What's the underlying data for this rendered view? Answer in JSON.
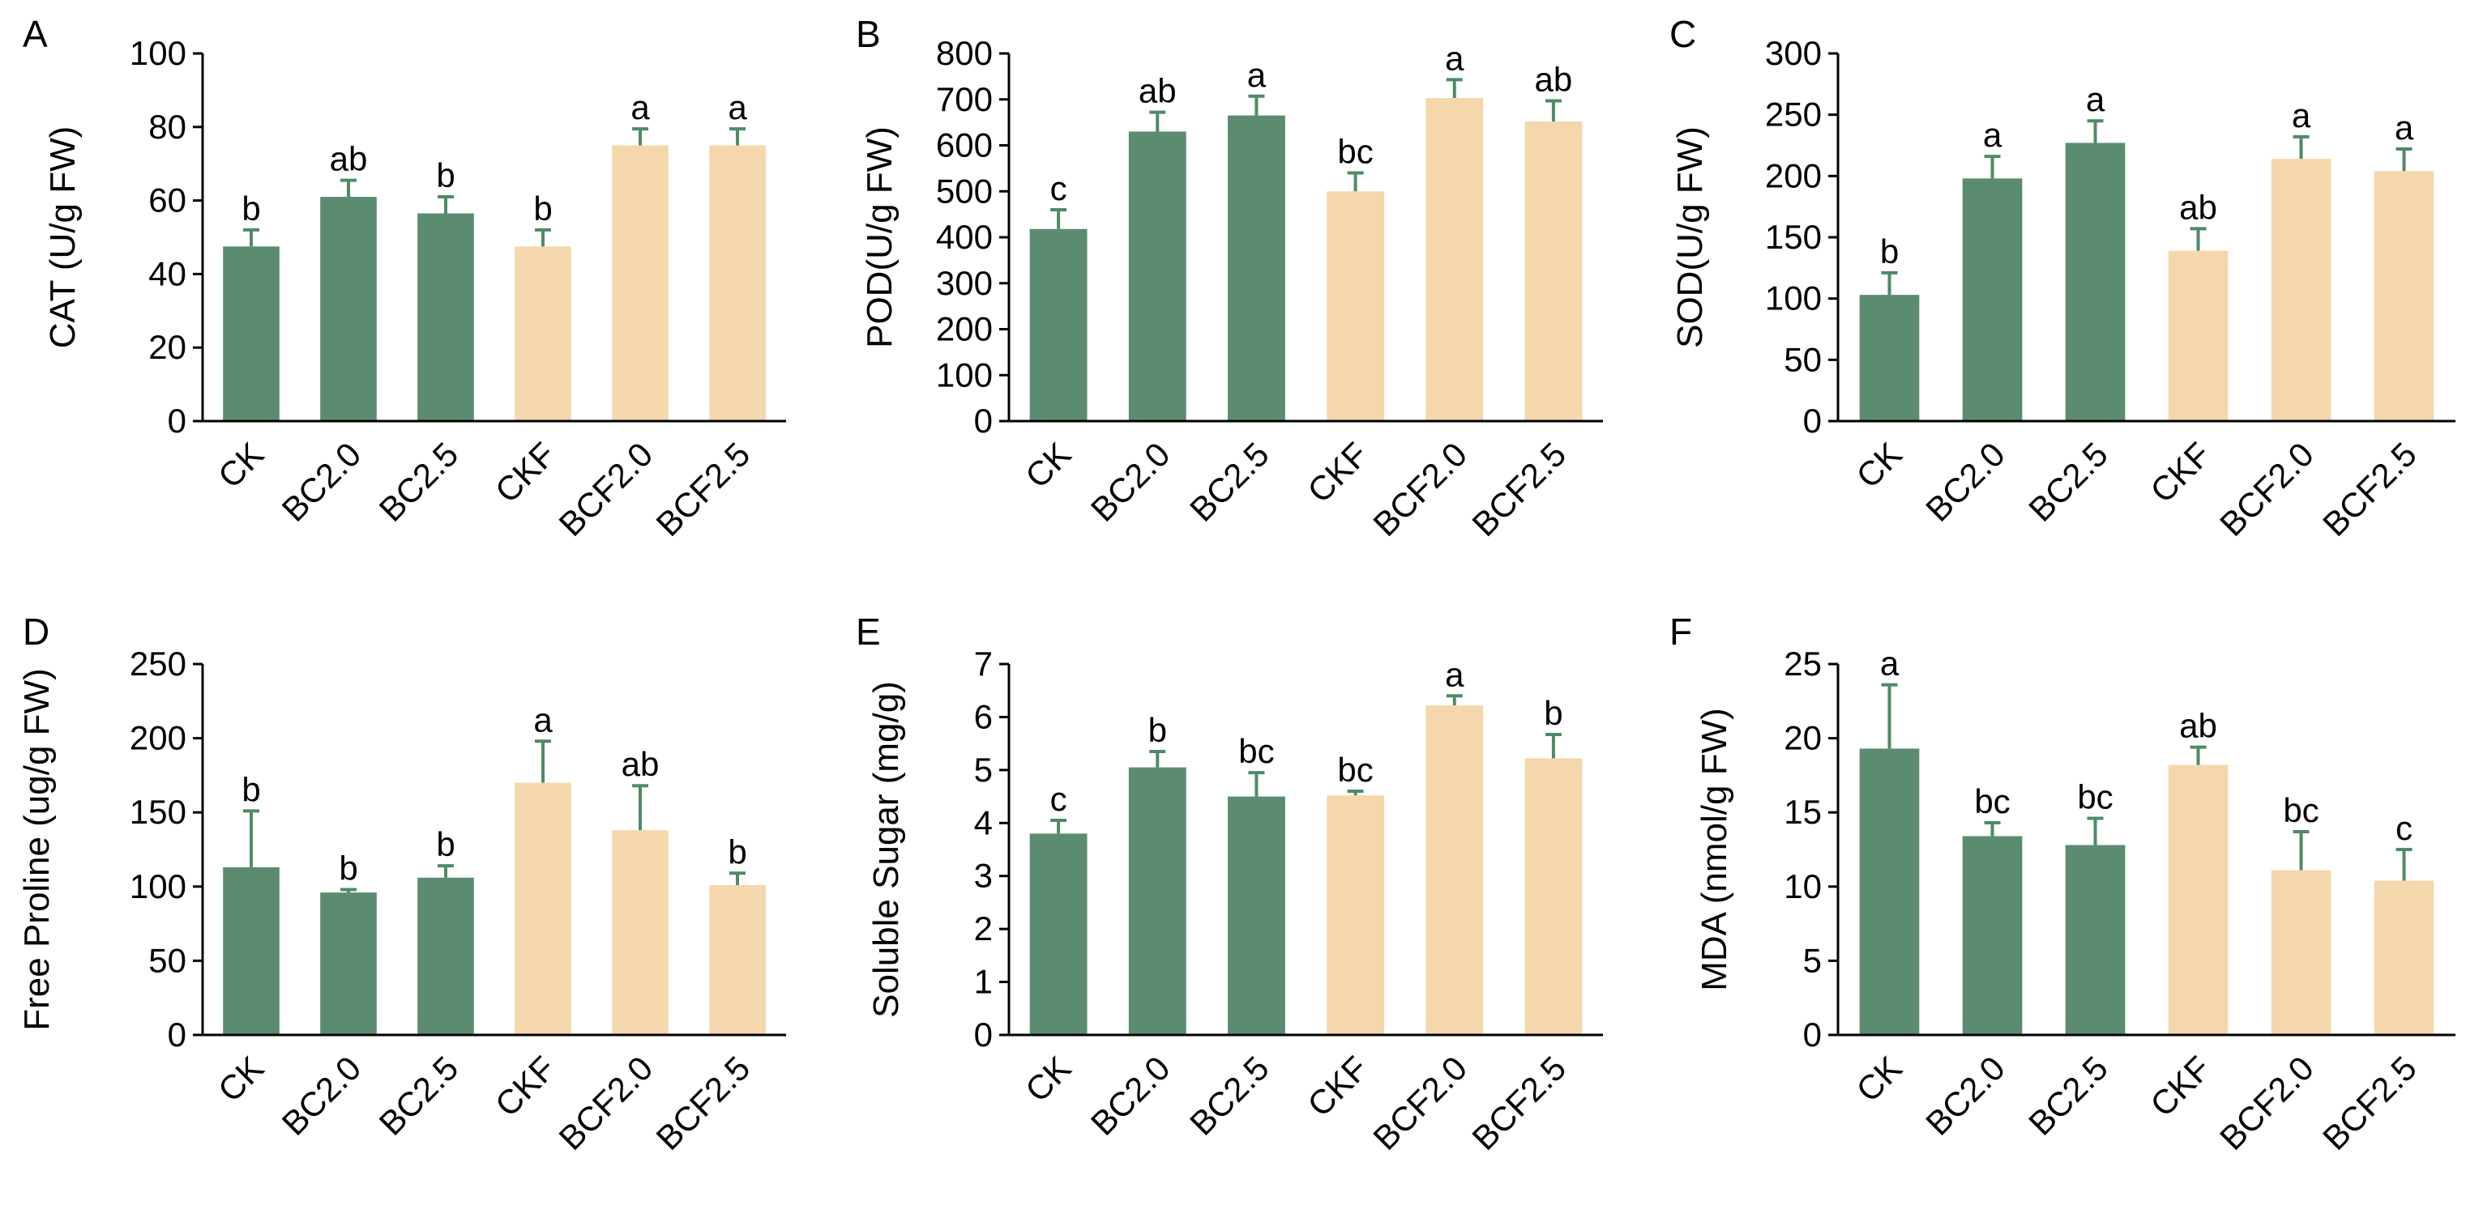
{
  "colors": {
    "group1": "#5b8c71",
    "group2": "#f5d7ad",
    "error_bar": "#4f8a67"
  },
  "chart_data": [
    {
      "panel": "A",
      "type": "bar",
      "ylabel": "CAT (U/g FW)",
      "ylim": [
        0,
        100
      ],
      "ticks": [
        0,
        20,
        40,
        60,
        80,
        100
      ],
      "categories": [
        "CK",
        "BC2.0",
        "BC2.5",
        "CKF",
        "BCF2.0",
        "BCF2.5"
      ],
      "values": [
        47.5,
        61,
        56.5,
        47.5,
        75,
        75
      ],
      "errors": [
        4.5,
        4.5,
        4.5,
        4.5,
        4.5,
        4.5
      ],
      "letters": [
        "b",
        "ab",
        "b",
        "b",
        "a",
        "a"
      ]
    },
    {
      "panel": "B",
      "type": "bar",
      "ylabel": "POD(U/g FW)",
      "ylim": [
        0,
        800
      ],
      "ticks": [
        0,
        100,
        200,
        300,
        400,
        500,
        600,
        700,
        800
      ],
      "categories": [
        "CK",
        "BC2.0",
        "BC2.5",
        "CKF",
        "BCF2.0",
        "BCF2.5"
      ],
      "values": [
        418,
        630,
        665,
        500,
        703,
        652
      ],
      "errors": [
        42,
        42,
        42,
        40,
        40,
        45
      ],
      "letters": [
        "c",
        "ab",
        "a",
        "bc",
        "a",
        "ab"
      ]
    },
    {
      "panel": "C",
      "type": "bar",
      "ylabel": "SOD(U/g FW)",
      "ylim": [
        0,
        300
      ],
      "ticks": [
        0,
        50,
        100,
        150,
        200,
        250,
        300
      ],
      "categories": [
        "CK",
        "BC2.0",
        "BC2.5",
        "CKF",
        "BCF2.0",
        "BCF2.5"
      ],
      "values": [
        103,
        198,
        227,
        139,
        214,
        204
      ],
      "errors": [
        18,
        18,
        18,
        18,
        18,
        18
      ],
      "letters": [
        "b",
        "a",
        "a",
        "ab",
        "a",
        "a"
      ]
    },
    {
      "panel": "D",
      "type": "bar",
      "ylabel": "Free Proline (ug/g FW)",
      "ylim": [
        0,
        250
      ],
      "ticks": [
        0,
        50,
        100,
        150,
        200,
        250
      ],
      "categories": [
        "CK",
        "BC2.0",
        "BC2.5",
        "CKF",
        "BCF2.0",
        "BCF2.5"
      ],
      "values": [
        113,
        96,
        106,
        170,
        138,
        101
      ],
      "errors": [
        38,
        2,
        8,
        28,
        30,
        8
      ],
      "letters": [
        "b",
        "b",
        "b",
        "a",
        "ab",
        "b"
      ]
    },
    {
      "panel": "E",
      "type": "bar",
      "ylabel": "Soluble Sugar (mg/g)",
      "ylim": [
        0,
        7
      ],
      "ticks": [
        0,
        1,
        2,
        3,
        4,
        5,
        6,
        7
      ],
      "categories": [
        "CK",
        "BC2.0",
        "BC2.5",
        "CKF",
        "BCF2.0",
        "BCF2.5"
      ],
      "values": [
        3.8,
        5.05,
        4.5,
        4.52,
        6.22,
        5.22
      ],
      "errors": [
        0.25,
        0.3,
        0.45,
        0.08,
        0.18,
        0.45
      ],
      "letters": [
        "c",
        "b",
        "bc",
        "bc",
        "a",
        "b"
      ]
    },
    {
      "panel": "F",
      "type": "bar",
      "ylabel": "MDA (nmol/g FW)",
      "ylim": [
        0,
        25
      ],
      "ticks": [
        0,
        5,
        10,
        15,
        20,
        25
      ],
      "categories": [
        "CK",
        "BC2.0",
        "BC2.5",
        "CKF",
        "BCF2.0",
        "BCF2.5"
      ],
      "values": [
        19.3,
        13.4,
        12.8,
        18.2,
        11.1,
        10.4
      ],
      "errors": [
        4.3,
        0.9,
        1.8,
        1.2,
        2.6,
        2.1
      ],
      "letters": [
        "a",
        "bc",
        "bc",
        "ab",
        "bc",
        "c"
      ]
    }
  ]
}
